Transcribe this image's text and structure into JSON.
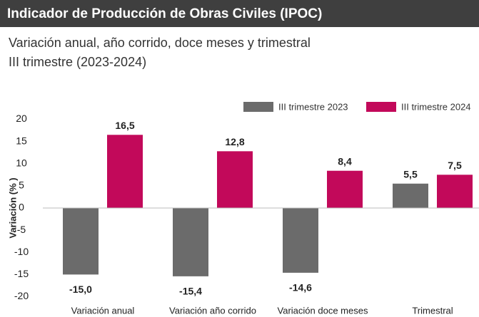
{
  "chart_data": {
    "type": "bar",
    "title": "Indicador de Producción de Obras Civiles (IPOC)",
    "subtitle": [
      "Variación anual, año corrido, doce meses y trimestral",
      "III trimestre (2023-2024)"
    ],
    "ylabel": "Variación (% )",
    "categories": [
      "Variación anual",
      "Variación año corrido",
      "Variación doce meses",
      "Trimestral"
    ],
    "series": [
      {
        "name": "III trimestre 2023",
        "color": "#6b6b6b",
        "values": [
          -15.0,
          -15.4,
          -14.6,
          5.5
        ],
        "value_labels": [
          "-15,0",
          "-15,4",
          "-14,6",
          "5,5"
        ]
      },
      {
        "name": "III trimestre 2024",
        "color": "#c2095a",
        "values": [
          16.5,
          12.8,
          8.4,
          7.5
        ],
        "value_labels": [
          "16,5",
          "12,8",
          "8,4",
          "7,5"
        ]
      }
    ],
    "ylim": [
      -20,
      20
    ],
    "yticks": [
      -20,
      -15,
      -10,
      -5,
      0,
      5,
      10,
      15,
      20
    ],
    "grid": false,
    "legend": "top-right"
  }
}
